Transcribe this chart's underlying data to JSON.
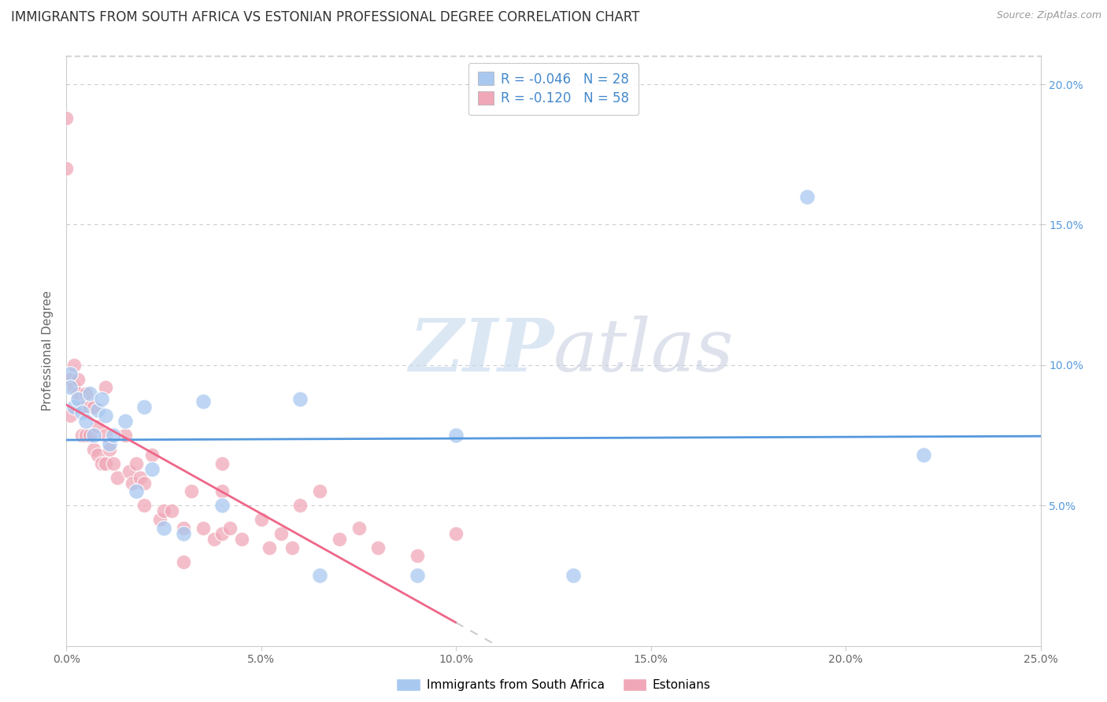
{
  "title": "IMMIGRANTS FROM SOUTH AFRICA VS ESTONIAN PROFESSIONAL DEGREE CORRELATION CHART",
  "source": "Source: ZipAtlas.com",
  "ylabel": "Professional Degree",
  "legend_labels": [
    "Immigrants from South Africa",
    "Estonians"
  ],
  "r_blue": -0.046,
  "n_blue": 28,
  "r_pink": -0.12,
  "n_pink": 58,
  "xmin": 0.0,
  "xmax": 0.25,
  "ymin": 0.0,
  "ymax": 0.21,
  "xticks": [
    0.0,
    0.05,
    0.1,
    0.15,
    0.2,
    0.25
  ],
  "yticks": [
    0.05,
    0.1,
    0.15,
    0.2
  ],
  "xtick_labels": [
    "0.0%",
    "5.0%",
    "10.0%",
    "15.0%",
    "20.0%",
    "25.0%"
  ],
  "ytick_labels": [
    "5.0%",
    "10.0%",
    "15.0%",
    "20.0%"
  ],
  "background_color": "#ffffff",
  "grid_color": "#cccccc",
  "blue_scatter_color": "#a8c8f0",
  "pink_scatter_color": "#f0a8b8",
  "blue_line_color": "#5599dd",
  "pink_line_color": "#ee6688",
  "dashed_line_color": "#cccccc",
  "watermark_zip": "ZIP",
  "watermark_atlas": "atlas",
  "blue_points_x": [
    0.001,
    0.001,
    0.002,
    0.003,
    0.004,
    0.005,
    0.006,
    0.007,
    0.008,
    0.009,
    0.01,
    0.011,
    0.012,
    0.015,
    0.018,
    0.02,
    0.022,
    0.025,
    0.03,
    0.035,
    0.04,
    0.06,
    0.065,
    0.09,
    0.1,
    0.13,
    0.19,
    0.22
  ],
  "blue_points_y": [
    0.097,
    0.092,
    0.085,
    0.088,
    0.083,
    0.08,
    0.09,
    0.075,
    0.084,
    0.088,
    0.082,
    0.072,
    0.075,
    0.08,
    0.055,
    0.085,
    0.063,
    0.042,
    0.04,
    0.087,
    0.05,
    0.088,
    0.025,
    0.025,
    0.075,
    0.025,
    0.16,
    0.068
  ],
  "pink_points_x": [
    0.0,
    0.0,
    0.0,
    0.001,
    0.001,
    0.002,
    0.002,
    0.003,
    0.003,
    0.004,
    0.004,
    0.005,
    0.005,
    0.006,
    0.006,
    0.007,
    0.007,
    0.008,
    0.008,
    0.009,
    0.01,
    0.01,
    0.01,
    0.011,
    0.012,
    0.013,
    0.015,
    0.016,
    0.017,
    0.018,
    0.019,
    0.02,
    0.022,
    0.024,
    0.025,
    0.027,
    0.03,
    0.032,
    0.035,
    0.038,
    0.04,
    0.04,
    0.042,
    0.045,
    0.05,
    0.052,
    0.055,
    0.058,
    0.06,
    0.065,
    0.07,
    0.075,
    0.08,
    0.09,
    0.1,
    0.04,
    0.03,
    0.02
  ],
  "pink_points_y": [
    0.188,
    0.17,
    0.095,
    0.095,
    0.082,
    0.1,
    0.092,
    0.095,
    0.09,
    0.085,
    0.075,
    0.09,
    0.075,
    0.085,
    0.075,
    0.085,
    0.07,
    0.078,
    0.068,
    0.065,
    0.092,
    0.075,
    0.065,
    0.07,
    0.065,
    0.06,
    0.075,
    0.062,
    0.058,
    0.065,
    0.06,
    0.058,
    0.068,
    0.045,
    0.048,
    0.048,
    0.042,
    0.055,
    0.042,
    0.038,
    0.055,
    0.04,
    0.042,
    0.038,
    0.045,
    0.035,
    0.04,
    0.035,
    0.05,
    0.055,
    0.038,
    0.042,
    0.035,
    0.032,
    0.04,
    0.065,
    0.03,
    0.05
  ],
  "title_fontsize": 12,
  "tick_fontsize": 10,
  "ylabel_fontsize": 11
}
